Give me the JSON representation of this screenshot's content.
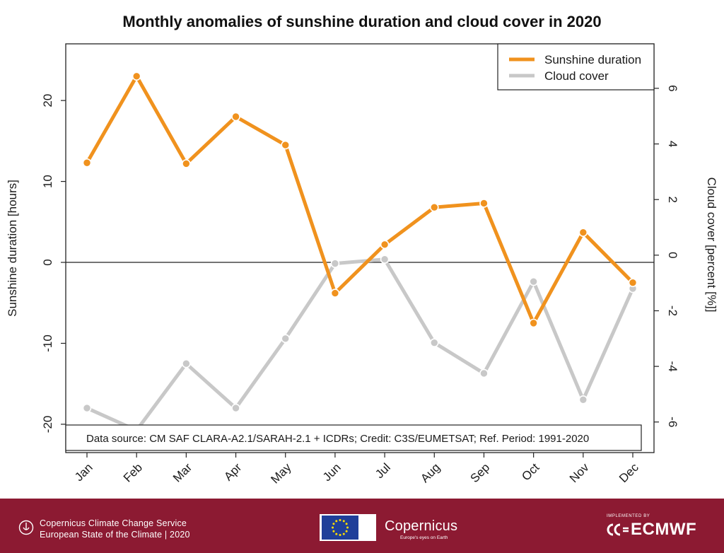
{
  "chart_data": {
    "type": "line",
    "title": "Monthly anomalies of sunshine duration and cloud cover in 2020",
    "categories": [
      "Jan",
      "Feb",
      "Mar",
      "Apr",
      "May",
      "Jun",
      "Jul",
      "Aug",
      "Sep",
      "Oct",
      "Nov",
      "Dec"
    ],
    "ylabel_left": "Sunshine duration [hours]",
    "ylabel_right": "Cloud cover [percent [%]]",
    "ylim_left": [
      -23.5,
      27
    ],
    "ylim_right": [
      -7.1,
      7.6
    ],
    "yticks_left": [
      -20,
      -10,
      0,
      10,
      20
    ],
    "yticks_right": [
      -6,
      -4,
      -2,
      0,
      2,
      4,
      6
    ],
    "zero_line": true,
    "legend_position": "top-right",
    "series": [
      {
        "name": "Sunshine duration",
        "axis": "left",
        "color": "#f0921e",
        "values": [
          12.3,
          23.0,
          12.2,
          18.0,
          14.5,
          -3.8,
          2.2,
          6.8,
          7.3,
          -7.5,
          3.7,
          -2.5
        ]
      },
      {
        "name": "Cloud cover",
        "axis": "right",
        "color": "#c8c8c8",
        "values": [
          -5.5,
          -6.3,
          -3.9,
          -5.5,
          -3.0,
          -0.3,
          -0.15,
          -3.15,
          -4.25,
          -0.95,
          -5.2,
          -1.2
        ]
      }
    ],
    "note": "Data source: CM SAF CLARA-A2.1/SARAH-2.1 + ICDRs;  Credit: C3S/EUMETSAT;  Ref. Period: 1991-2020"
  },
  "footer": {
    "line1": "Copernicus Climate Change Service",
    "line2": "European State of the Climate | 2020",
    "copernicus": "Copernicus",
    "copernicus_tagline": "Europe's eyes on Earth",
    "implemented_by": "IMPLEMENTED BY",
    "ecmwf": "ECMWF",
    "background_color": "#8c1a32"
  }
}
